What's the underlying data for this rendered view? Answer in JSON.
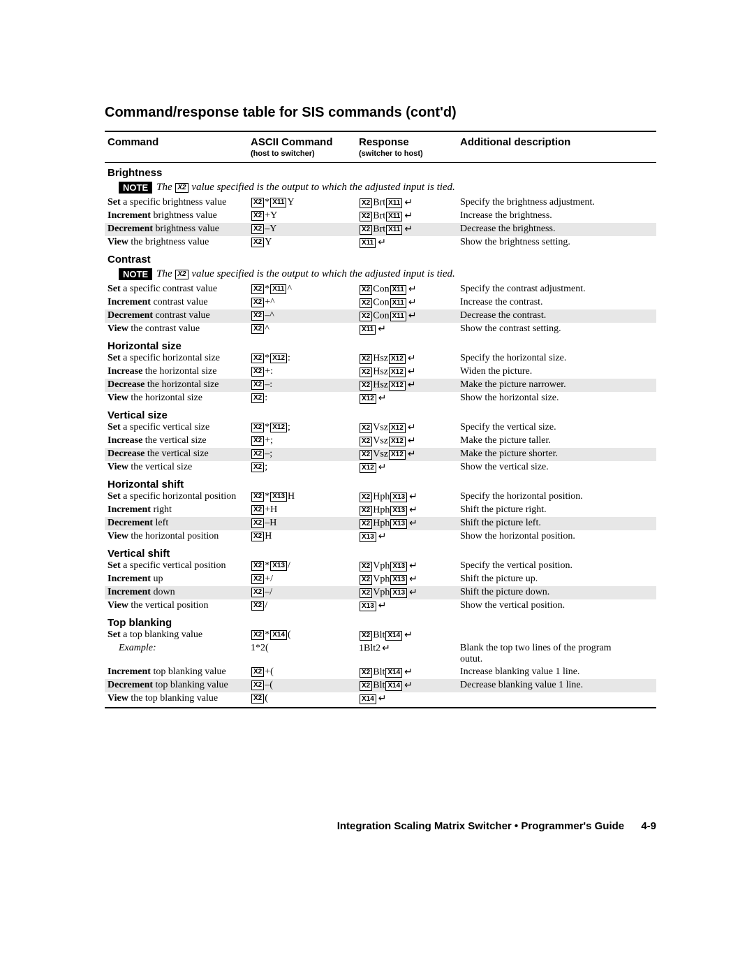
{
  "title": "Command/response table for SIS commands (cont'd)",
  "colors": {
    "bg": "#ffffff",
    "fg": "#000000",
    "shade": "#e7e7e7"
  },
  "headers": {
    "command": "Command",
    "ascii": "ASCII Command",
    "ascii_sub": "(host to switcher)",
    "response": "Response",
    "response_sub": "(switcher to host)",
    "additional": "Additional description"
  },
  "note_label": "NOTE",
  "note_text_prefix": "The ",
  "note_text_box": "X2",
  "note_text_suffix": " value specified is the output to which the adjusted input is tied.",
  "ret_glyph": "↵",
  "sections": [
    {
      "name": "Brightness",
      "note": true,
      "rows": [
        {
          "shaded": false,
          "cmd_bold": "Set",
          "cmd_rest": " a specific brightness value",
          "ascii": [
            {
              "box": "X2"
            },
            "*",
            {
              "box": "X11"
            },
            "Y"
          ],
          "resp": [
            {
              "box": "X2"
            },
            "Brt",
            {
              "box": "X11"
            },
            {
              "ret": true
            }
          ],
          "desc": "Specify the brightness adjustment."
        },
        {
          "shaded": false,
          "cmd_bold": "Increment",
          "cmd_rest": " brightness value",
          "ascii": [
            {
              "box": "X2"
            },
            "+Y"
          ],
          "resp": [
            {
              "box": "X2"
            },
            "Brt",
            {
              "box": "X11"
            },
            {
              "ret": true
            }
          ],
          "desc": "Increase the brightness."
        },
        {
          "shaded": true,
          "cmd_bold": "Decrement",
          "cmd_rest": " brightness value",
          "ascii": [
            {
              "box": "X2"
            },
            "–Y"
          ],
          "resp": [
            {
              "box": "X2"
            },
            "Brt",
            {
              "box": "X11"
            },
            {
              "ret": true
            }
          ],
          "desc": "Decrease the brightness."
        },
        {
          "shaded": false,
          "cmd_bold": "View",
          "cmd_rest": " the brightness value",
          "ascii": [
            {
              "box": "X2"
            },
            "Y"
          ],
          "resp": [
            {
              "box": "X11"
            },
            {
              "ret": true
            }
          ],
          "desc": "Show the brightness setting."
        }
      ]
    },
    {
      "name": "Contrast",
      "note": true,
      "rows": [
        {
          "shaded": false,
          "cmd_bold": "Set",
          "cmd_rest": " a specific contrast value",
          "ascii": [
            {
              "box": "X2"
            },
            "*",
            {
              "box": "X11"
            },
            "^"
          ],
          "resp": [
            {
              "box": "X2"
            },
            "Con",
            {
              "box": "X11"
            },
            {
              "ret": true
            }
          ],
          "desc": "Specify the contrast adjustment."
        },
        {
          "shaded": false,
          "cmd_bold": "Increment",
          "cmd_rest": " contrast value",
          "ascii": [
            {
              "box": "X2"
            },
            "+^"
          ],
          "resp": [
            {
              "box": "X2"
            },
            "Con",
            {
              "box": "X11"
            },
            {
              "ret": true
            }
          ],
          "desc": "Increase the contrast."
        },
        {
          "shaded": true,
          "cmd_bold": "Decrement",
          "cmd_rest": " contrast value",
          "ascii": [
            {
              "box": "X2"
            },
            "–^"
          ],
          "resp": [
            {
              "box": "X2"
            },
            "Con",
            {
              "box": "X11"
            },
            {
              "ret": true
            }
          ],
          "desc": "Decrease the contrast."
        },
        {
          "shaded": false,
          "cmd_bold": "View",
          "cmd_rest": " the contrast value",
          "ascii": [
            {
              "box": "X2"
            },
            "^"
          ],
          "resp": [
            {
              "box": "X11"
            },
            {
              "ret": true
            }
          ],
          "desc": "Show the contrast setting."
        }
      ]
    },
    {
      "name": "Horizontal size",
      "note": false,
      "rows": [
        {
          "shaded": false,
          "cmd_bold": "Set",
          "cmd_rest": " a specific horizontal size",
          "ascii": [
            {
              "box": "X2"
            },
            "*",
            {
              "box": "X12"
            },
            ":"
          ],
          "resp": [
            {
              "box": "X2"
            },
            "Hsz",
            {
              "box": "X12"
            },
            {
              "ret": true
            }
          ],
          "desc": "Specify the horizontal size."
        },
        {
          "shaded": false,
          "cmd_bold": "Increase",
          "cmd_rest": " the horizontal size",
          "ascii": [
            {
              "box": "X2"
            },
            "+:"
          ],
          "resp": [
            {
              "box": "X2"
            },
            "Hsz",
            {
              "box": "X12"
            },
            {
              "ret": true
            }
          ],
          "desc": "Widen the picture."
        },
        {
          "shaded": true,
          "cmd_bold": "Decrease",
          "cmd_rest": " the horizontal size",
          "ascii": [
            {
              "box": "X2"
            },
            "–:"
          ],
          "resp": [
            {
              "box": "X2"
            },
            "Hsz",
            {
              "box": "X12"
            },
            {
              "ret": true
            }
          ],
          "desc": "Make the picture narrower."
        },
        {
          "shaded": false,
          "cmd_bold": "View",
          "cmd_rest": " the horizontal size",
          "ascii": [
            {
              "box": "X2"
            },
            ":"
          ],
          "resp": [
            {
              "box": "X12"
            },
            {
              "ret": true
            }
          ],
          "desc": "Show the horizontal size."
        }
      ]
    },
    {
      "name": "Vertical size",
      "note": false,
      "rows": [
        {
          "shaded": false,
          "cmd_bold": "Set",
          "cmd_rest": " a specific vertical size",
          "ascii": [
            {
              "box": "X2"
            },
            "*",
            {
              "box": "X12"
            },
            ";"
          ],
          "resp": [
            {
              "box": "X2"
            },
            "Vsz",
            {
              "box": "X12"
            },
            {
              "ret": true
            }
          ],
          "desc": "Specify the vertical size."
        },
        {
          "shaded": false,
          "cmd_bold": "Increase",
          "cmd_rest": " the vertical size",
          "ascii": [
            {
              "box": "X2"
            },
            "+;"
          ],
          "resp": [
            {
              "box": "X2"
            },
            "Vsz",
            {
              "box": "X12"
            },
            {
              "ret": true
            }
          ],
          "desc": "Make the picture taller."
        },
        {
          "shaded": true,
          "cmd_bold": "Decrease",
          "cmd_rest": " the vertical size",
          "ascii": [
            {
              "box": "X2"
            },
            "–;"
          ],
          "resp": [
            {
              "box": "X2"
            },
            "Vsz",
            {
              "box": "X12"
            },
            {
              "ret": true
            }
          ],
          "desc": "Make the picture shorter."
        },
        {
          "shaded": false,
          "cmd_bold": "View",
          "cmd_rest": " the vertical size",
          "ascii": [
            {
              "box": "X2"
            },
            ";"
          ],
          "resp": [
            {
              "box": "X12"
            },
            {
              "ret": true
            }
          ],
          "desc": "Show the vertical size."
        }
      ]
    },
    {
      "name": "Horizontal shift",
      "note": false,
      "rows": [
        {
          "shaded": false,
          "cmd_bold": "Set",
          "cmd_rest": " a specific horizontal position",
          "ascii": [
            {
              "box": "X2"
            },
            "*",
            {
              "box": "X13"
            },
            "H"
          ],
          "resp": [
            {
              "box": "X2"
            },
            "Hph",
            {
              "box": "X13"
            },
            {
              "ret": true
            }
          ],
          "desc": "Specify the horizontal position."
        },
        {
          "shaded": false,
          "cmd_bold": "Increment",
          "cmd_rest": " right",
          "ascii": [
            {
              "box": "X2"
            },
            "+H"
          ],
          "resp": [
            {
              "box": "X2"
            },
            "Hph",
            {
              "box": "X13"
            },
            {
              "ret": true
            }
          ],
          "desc": "Shift the picture right."
        },
        {
          "shaded": true,
          "cmd_bold": "Decrement",
          "cmd_rest": " left",
          "ascii": [
            {
              "box": "X2"
            },
            "–H"
          ],
          "resp": [
            {
              "box": "X2"
            },
            "Hph",
            {
              "box": "X13"
            },
            {
              "ret": true
            }
          ],
          "desc": "Shift the picture left."
        },
        {
          "shaded": false,
          "cmd_bold": "View",
          "cmd_rest": " the horizontal position",
          "ascii": [
            {
              "box": "X2"
            },
            "H"
          ],
          "resp": [
            {
              "box": "X13"
            },
            {
              "ret": true
            }
          ],
          "desc": "Show the horizontal position."
        }
      ]
    },
    {
      "name": "Vertical shift",
      "note": false,
      "rows": [
        {
          "shaded": false,
          "cmd_bold": "Set",
          "cmd_rest": " a specific vertical position",
          "ascii": [
            {
              "box": "X2"
            },
            "*",
            {
              "box": "X13"
            },
            "/"
          ],
          "resp": [
            {
              "box": "X2"
            },
            "Vph",
            {
              "box": "X13"
            },
            {
              "ret": true
            }
          ],
          "desc": "Specify the vertical position."
        },
        {
          "shaded": false,
          "cmd_bold": "Increment",
          "cmd_rest": " up",
          "ascii": [
            {
              "box": "X2"
            },
            "+/"
          ],
          "resp": [
            {
              "box": "X2"
            },
            "Vph",
            {
              "box": "X13"
            },
            {
              "ret": true
            }
          ],
          "desc": "Shift the picture up."
        },
        {
          "shaded": true,
          "cmd_bold": "Increment",
          "cmd_rest": " down",
          "ascii": [
            {
              "box": "X2"
            },
            "–/"
          ],
          "resp": [
            {
              "box": "X2"
            },
            "Vph",
            {
              "box": "X13"
            },
            {
              "ret": true
            }
          ],
          "desc": "Shift the picture down."
        },
        {
          "shaded": false,
          "cmd_bold": "View",
          "cmd_rest": " the vertical position",
          "ascii": [
            {
              "box": "X2"
            },
            "/"
          ],
          "resp": [
            {
              "box": "X13"
            },
            {
              "ret": true
            }
          ],
          "desc": "Show the vertical position."
        }
      ]
    },
    {
      "name": "Top blanking",
      "note": false,
      "rows": [
        {
          "shaded": false,
          "cmd_bold": "Set",
          "cmd_rest": " a top blanking value",
          "ascii": [
            {
              "box": "X2"
            },
            "*",
            {
              "box": "X14"
            },
            "("
          ],
          "resp": [
            {
              "box": "X2"
            },
            "Blt",
            {
              "box": "X14"
            },
            {
              "ret": true
            }
          ],
          "desc": ""
        },
        {
          "shaded": false,
          "cmd_indent": true,
          "cmd_bold": "",
          "cmd_rest": "Example:",
          "ascii": [
            "1*2("
          ],
          "resp": [
            "1Blt2",
            {
              "ret": true
            }
          ],
          "desc": "Blank the top two lines of the program outut."
        },
        {
          "shaded": false,
          "cmd_bold": "Increment",
          "cmd_rest": " top blanking value",
          "ascii": [
            {
              "box": "X2"
            },
            "+("
          ],
          "resp": [
            {
              "box": "X2"
            },
            "Blt",
            {
              "box": "X14"
            },
            {
              "ret": true
            }
          ],
          "desc": "Increase blanking value 1 line."
        },
        {
          "shaded": true,
          "cmd_bold": "Decrement",
          "cmd_rest": " top blanking value",
          "ascii": [
            {
              "box": "X2"
            },
            "–("
          ],
          "resp": [
            {
              "box": "X2"
            },
            "Blt",
            {
              "box": "X14"
            },
            {
              "ret": true
            }
          ],
          "desc": "Decrease blanking value 1 line."
        },
        {
          "shaded": false,
          "cmd_bold": "View",
          "cmd_rest": " the top blanking value",
          "ascii": [
            {
              "box": "X2"
            },
            "("
          ],
          "resp": [
            {
              "box": "X14"
            },
            {
              "ret": true
            }
          ],
          "desc": ""
        }
      ]
    }
  ],
  "footer": {
    "text": "Integration Scaling Matrix Switcher • Programmer's Guide",
    "page": "4-9"
  }
}
